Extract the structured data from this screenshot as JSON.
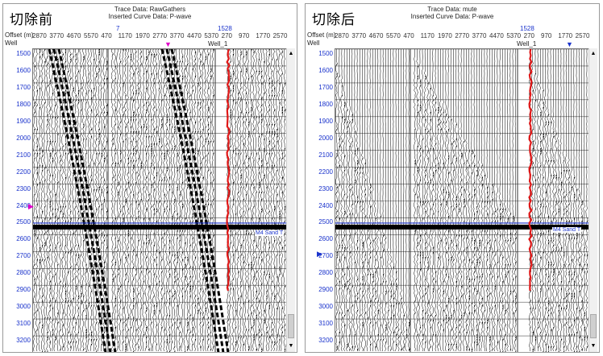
{
  "panels": [
    {
      "id": "left",
      "title": "切除前",
      "trace_data": "Trace Data: RawGathers",
      "curve_data": "Inserted Curve Data:  P-wave",
      "axis_offset_label": "Offset (m)",
      "axis_well_label": "Well",
      "offsets": [
        "2870",
        "3770",
        "4670",
        "5570",
        "470",
        "1170",
        "1970",
        "2770",
        "3770",
        "4470",
        "5370",
        "270",
        "970",
        "1770",
        "2570"
      ],
      "top_left_number": "7",
      "well_number": "1528",
      "well_name": "Well_1",
      "horizon_label": "M4 Sand T",
      "depths": [
        "1500",
        "1600",
        "1700",
        "1800",
        "1900",
        "2000",
        "2100",
        "2200",
        "2300",
        "2400",
        "2500",
        "2600",
        "2700",
        "2800",
        "2900",
        "3000",
        "3100",
        "3200"
      ],
      "scroll_up": "▲",
      "scroll_down": "▼",
      "marker_top": "▼",
      "marker_left": "▶",
      "marker_top_color": "#e000c8",
      "marker_left_color": "#e000c8"
    },
    {
      "id": "right",
      "title": "切除后",
      "trace_data": "Trace Data: mute",
      "curve_data": "Inserted Curve Data:  P-wave",
      "axis_offset_label": "Offset (m)",
      "axis_well_label": "Well",
      "offsets": [
        "2870",
        "3770",
        "4670",
        "5570",
        "470",
        "1170",
        "1970",
        "2770",
        "3770",
        "4470",
        "5370",
        "270",
        "970",
        "1770",
        "2570"
      ],
      "top_left_number": "",
      "well_number": "1528",
      "well_name": "Well_1",
      "horizon_label": "M4 Sand T",
      "depths": [
        "1500",
        "1600",
        "1700",
        "1800",
        "1900",
        "2000",
        "2100",
        "2200",
        "2300",
        "2400",
        "2500",
        "2600",
        "2700",
        "2800",
        "2900",
        "3000",
        "3100",
        "3200"
      ],
      "scroll_up": "▲",
      "scroll_down": "▼",
      "marker_top": "▼",
      "marker_left": "▶",
      "marker_top_color": "#1a33cc",
      "marker_left_color": "#1a33cc"
    }
  ],
  "colors": {
    "well_line": "#e01818",
    "horizon_line": "#1a33cc",
    "depth_text": "#1a33cc",
    "trace": "#000000"
  }
}
